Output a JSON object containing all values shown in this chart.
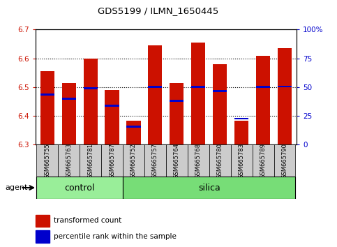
{
  "title": "GDS5199 / ILMN_1650445",
  "samples": [
    "GSM665755",
    "GSM665763",
    "GSM665781",
    "GSM665787",
    "GSM665752",
    "GSM665757",
    "GSM665764",
    "GSM665768",
    "GSM665780",
    "GSM665783",
    "GSM665789",
    "GSM665790"
  ],
  "groups": [
    "control",
    "control",
    "control",
    "control",
    "silica",
    "silica",
    "silica",
    "silica",
    "silica",
    "silica",
    "silica",
    "silica"
  ],
  "bar_tops": [
    6.555,
    6.515,
    6.598,
    6.49,
    6.382,
    6.645,
    6.515,
    6.655,
    6.58,
    6.382,
    6.608,
    6.635
  ],
  "blue_values": [
    6.475,
    6.46,
    6.495,
    6.435,
    6.362,
    6.5,
    6.452,
    6.5,
    6.487,
    6.39,
    6.5,
    6.502
  ],
  "bar_bottom": 6.3,
  "ylim_left": [
    6.3,
    6.7
  ],
  "ylim_right": [
    0,
    100
  ],
  "yticks_left": [
    6.3,
    6.4,
    6.5,
    6.6,
    6.7
  ],
  "yticks_right": [
    0,
    25,
    50,
    75,
    100
  ],
  "ytick_labels_right": [
    "0",
    "25",
    "50",
    "75",
    "100%"
  ],
  "bar_color": "#cc1100",
  "blue_color": "#0000cc",
  "control_color": "#99ee99",
  "silica_color": "#77dd77",
  "agent_label": "agent",
  "legend_items": [
    "transformed count",
    "percentile rank within the sample"
  ],
  "control_label": "control",
  "silica_label": "silica",
  "bar_width": 0.65,
  "blue_bar_height": 0.007,
  "grid_yticks": [
    6.4,
    6.5,
    6.6
  ],
  "n_control": 4,
  "n_silica": 8
}
